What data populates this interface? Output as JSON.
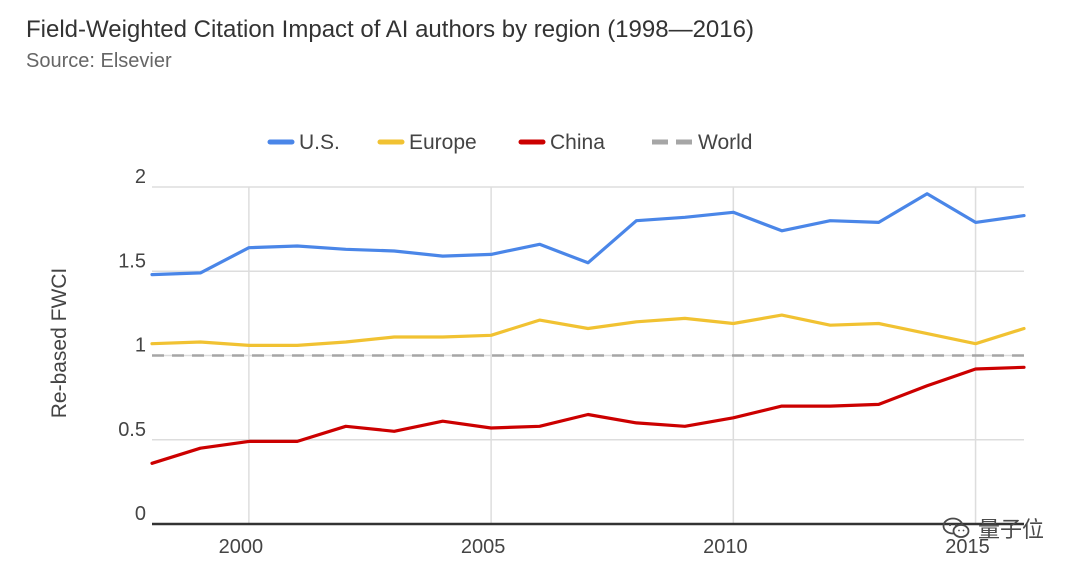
{
  "header": {
    "title": "Field-Weighted Citation Impact of AI authors by region (1998—2016)",
    "subtitle": "Source: Elsevier"
  },
  "watermark": {
    "text": "量子位",
    "icon": "wechat-icon"
  },
  "chart_data": {
    "type": "line",
    "title": "Field-Weighted Citation Impact of AI authors by region (1998—2016)",
    "subtitle": "Source: Elsevier",
    "xlabel": "",
    "ylabel": "Re-based FWCI",
    "x": [
      1998,
      1999,
      2000,
      2001,
      2002,
      2003,
      2004,
      2005,
      2006,
      2007,
      2008,
      2009,
      2010,
      2011,
      2012,
      2013,
      2014,
      2015,
      2016
    ],
    "xticks": [
      2000,
      2005,
      2010,
      2015
    ],
    "xtick_labels": [
      "2000",
      "2005",
      "2010",
      "2015"
    ],
    "yticks": [
      0,
      0.5,
      1,
      1.5,
      2
    ],
    "ytick_labels": [
      "0",
      "0.5",
      "1",
      "1.5",
      "2"
    ],
    "xlim": [
      1998,
      2016
    ],
    "ylim": [
      0,
      2
    ],
    "grid": true,
    "legend": "top",
    "series": [
      {
        "name": "U.S.",
        "color": "#4a86e8",
        "dashed": false,
        "values": [
          1.48,
          1.49,
          1.64,
          1.65,
          1.63,
          1.62,
          1.59,
          1.6,
          1.66,
          1.55,
          1.8,
          1.82,
          1.85,
          1.74,
          1.8,
          1.79,
          1.96,
          1.79,
          1.83
        ]
      },
      {
        "name": "Europe",
        "color": "#f1c232",
        "dashed": false,
        "values": [
          1.07,
          1.08,
          1.06,
          1.06,
          1.08,
          1.11,
          1.11,
          1.12,
          1.21,
          1.16,
          1.2,
          1.22,
          1.19,
          1.24,
          1.18,
          1.19,
          1.13,
          1.07,
          1.16
        ]
      },
      {
        "name": "China",
        "color": "#cc0000",
        "dashed": false,
        "values": [
          0.36,
          0.45,
          0.49,
          0.49,
          0.58,
          0.55,
          0.61,
          0.57,
          0.58,
          0.65,
          0.6,
          0.58,
          0.63,
          0.7,
          0.7,
          0.71,
          0.82,
          0.92,
          0.93
        ]
      },
      {
        "name": "World",
        "color": "#a6a6a6",
        "dashed": true,
        "values": [
          1,
          1,
          1,
          1,
          1,
          1,
          1,
          1,
          1,
          1,
          1,
          1,
          1,
          1,
          1,
          1,
          1,
          1,
          1
        ]
      }
    ]
  }
}
